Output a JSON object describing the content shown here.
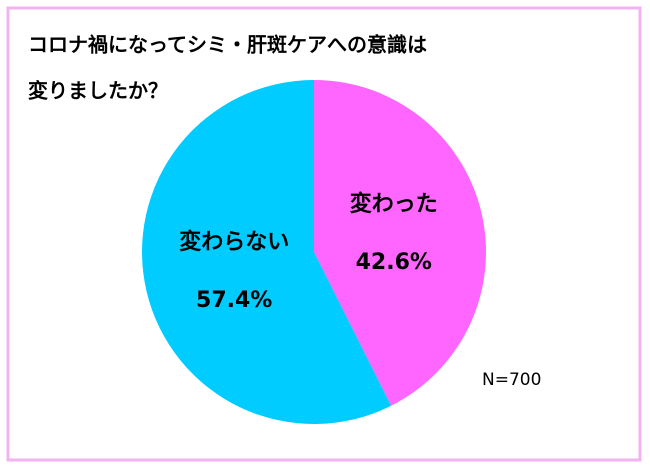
{
  "chart_data": {
    "type": "pie",
    "title": [
      "コロナ禍になってシミ・肝斑ケアへの意識は",
      "変りましたか？"
    ],
    "categories": [
      "変わった",
      "変わらない"
    ],
    "values": [
      42.6,
      57.4
    ],
    "value_labels": [
      "42.6%",
      "57.4%"
    ],
    "colors": [
      "#ff66ff",
      "#00ccff"
    ],
    "annotation": "N=700"
  }
}
